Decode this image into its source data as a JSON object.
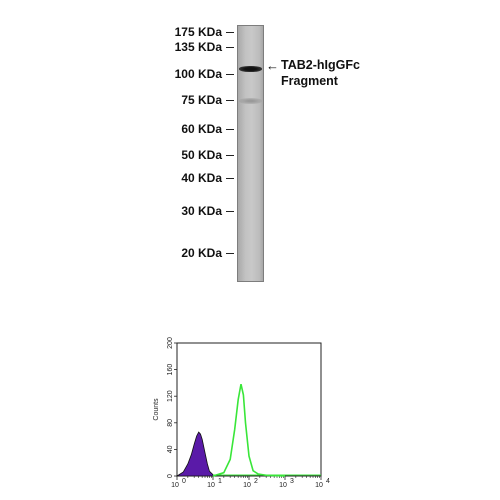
{
  "blot": {
    "markers": [
      {
        "label": "175 KDa",
        "kda": 175
      },
      {
        "label": "135 KDa",
        "kda": 135
      },
      {
        "label": "100 KDa",
        "kda": 100
      },
      {
        "label": "75 KDa",
        "kda": 75
      },
      {
        "label": "60 KDa",
        "kda": 60
      },
      {
        "label": "50 KDa",
        "kda": 50
      },
      {
        "label": "40 KDa",
        "kda": 40
      },
      {
        "label": "30 KDa",
        "kda": 30
      },
      {
        "label": "20 KDa",
        "kda": 20
      }
    ],
    "band_label_line1": "TAB2-hIgGFc",
    "band_label_line2": "Fragment",
    "arrow": "←"
  },
  "flow": {
    "ylabel": "Counts",
    "y_ticks": [
      "0",
      "40",
      "80",
      "120",
      "160",
      "200"
    ],
    "x_ticks": [
      "10",
      "10",
      "10",
      "10",
      "10"
    ],
    "x_exponents": [
      "0",
      "1",
      "2",
      "3",
      "4"
    ],
    "colors": {
      "control_fill": "#5a1aa8",
      "sample_line": "#39e639"
    }
  },
  "chart_data": {
    "type": "area",
    "xlabel": "",
    "ylabel": "Counts",
    "xscale": "log",
    "xlim": [
      1,
      10000
    ],
    "ylim": [
      0,
      200
    ],
    "series": [
      {
        "x": [
          1,
          1.5,
          2,
          2.5,
          3,
          3.5,
          4,
          4.5,
          5,
          6,
          7,
          8,
          10,
          12
        ],
        "values": [
          0,
          6,
          18,
          32,
          48,
          60,
          66,
          63,
          55,
          35,
          18,
          7,
          2,
          0
        ]
      },
      {
        "x": [
          10,
          20,
          30,
          40,
          50,
          60,
          70,
          80,
          100,
          130,
          180,
          300,
          1000
        ],
        "values": [
          0,
          5,
          25,
          70,
          115,
          138,
          122,
          80,
          30,
          8,
          3,
          1,
          0
        ]
      }
    ]
  }
}
